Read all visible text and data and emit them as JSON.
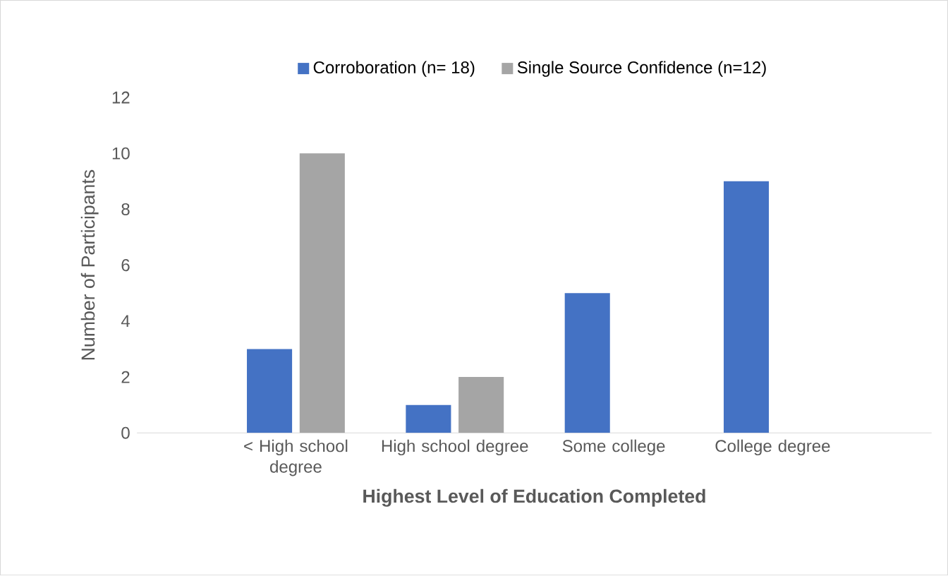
{
  "chart_data": {
    "type": "bar",
    "categories": [
      "< High school degree",
      "High school degree",
      "Some college",
      "College degree"
    ],
    "series": [
      {
        "name": "Corroboration (n= 18)",
        "color": "#4472c4",
        "values": [
          3,
          1,
          5,
          9
        ]
      },
      {
        "name": "Single Source Confidence (n=12)",
        "color": "#a5a5a5",
        "values": [
          10,
          2,
          0,
          0
        ]
      }
    ],
    "xlabel": "Highest Level of Education Completed",
    "ylabel": "Number of Participants",
    "ylim": [
      0,
      12
    ],
    "yticks": [
      0,
      2,
      4,
      6,
      8,
      10,
      12
    ],
    "grid": false,
    "legend": "top"
  }
}
